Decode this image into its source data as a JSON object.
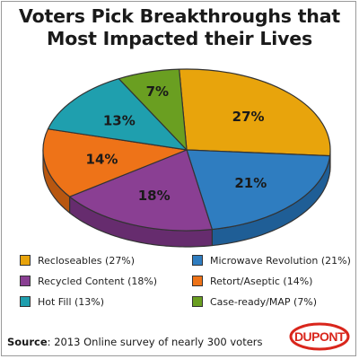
{
  "chart_data": {
    "type": "pie",
    "title_line1": "Voters Pick Breakthroughs that",
    "title_line2": "Most Impacted their Lives",
    "slices": [
      {
        "name": "Recloseables",
        "value": 27,
        "label": "27%",
        "legend": "Recloseables (27%)",
        "color": "#e8a40c",
        "side": "#b57e06"
      },
      {
        "name": "Microwave Revolution",
        "value": 21,
        "label": "21%",
        "legend": "Microwave Revolution (21%)",
        "color": "#2f7dc0",
        "side": "#1f5e96"
      },
      {
        "name": "Recycled Content",
        "value": 18,
        "label": "18%",
        "legend": "Recycled Content (18%)",
        "color": "#8a3f93",
        "side": "#662c6e"
      },
      {
        "name": "Retort/Aseptic",
        "value": 14,
        "label": "14%",
        "legend": "Retort/Aseptic (14%)",
        "color": "#ee7318",
        "side": "#b85710"
      },
      {
        "name": "Hot Fill",
        "value": 13,
        "label": "13%",
        "legend": "Hot Fill (13%)",
        "color": "#1f9fae",
        "side": "#157985"
      },
      {
        "name": "Case-ready/MAP",
        "value": 7,
        "label": "7%",
        "legend": "Case-ready/MAP (7%)",
        "color": "#6a9f21",
        "side": "#4d7616"
      }
    ],
    "legend_order": [
      "Recloseables (27%)",
      "Microwave Revolution (21%)",
      "Recycled Content (18%)",
      "Retort/Aseptic (14%)",
      "Hot Fill (13%)",
      "Case-ready/MAP (7%)"
    ],
    "legend_placement": "bottom"
  },
  "source": {
    "label": "Source",
    "text": ": 2013  Online survey of nearly 300 voters"
  },
  "logo": {
    "text": "DUPONT",
    "color": "#d9261c"
  }
}
